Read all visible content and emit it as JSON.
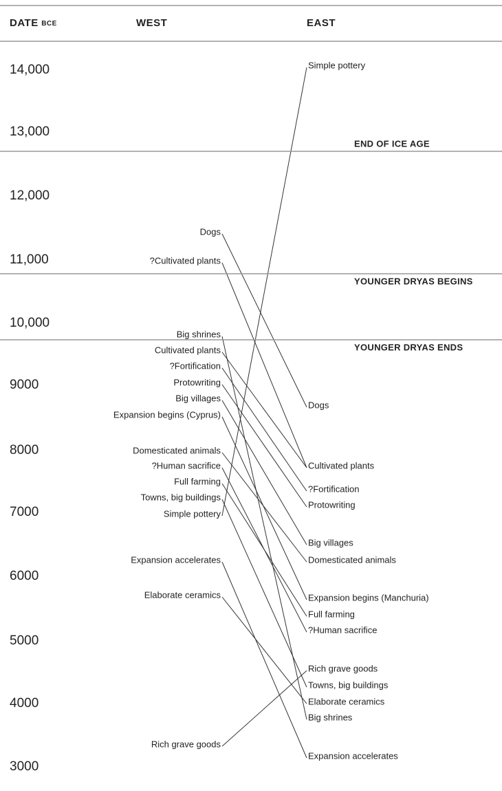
{
  "header": {
    "date": "DATE",
    "date_unit": "BCE",
    "west": "WEST",
    "east": "EAST"
  },
  "dates": [
    "14,000",
    "13,000",
    "12,000",
    "11,000",
    "10,000",
    "9000",
    "8000",
    "7000",
    "6000",
    "5000",
    "4000",
    "3000"
  ],
  "periods": [
    "END OF ICE AGE",
    "YOUNGER DRYAS BEGINS",
    "YOUNGER DRYAS ENDS"
  ],
  "west": [
    "Dogs",
    "?Cultivated plants",
    "Big shrines",
    "Cultivated plants",
    "?Fortification",
    "Protowriting",
    "Big villages",
    "Expansion begins (Cyprus)",
    "Domesticated animals",
    "?Human sacrifice",
    "Full farming",
    "Towns, big buildings",
    "Simple pottery",
    "Expansion accelerates",
    "Elaborate ceramics",
    "Rich grave goods"
  ],
  "east": [
    "Simple pottery",
    "Dogs",
    "Cultivated plants",
    "?Fortification",
    "Protowriting",
    "Big villages",
    "Domesticated animals",
    "Expansion begins (Manchuria)",
    "Full farming",
    "?Human sacrifice",
    "Rich grave goods",
    "Towns, big buildings",
    "Elaborate ceramics",
    "Big shrines",
    "Expansion accelerates"
  ]
}
